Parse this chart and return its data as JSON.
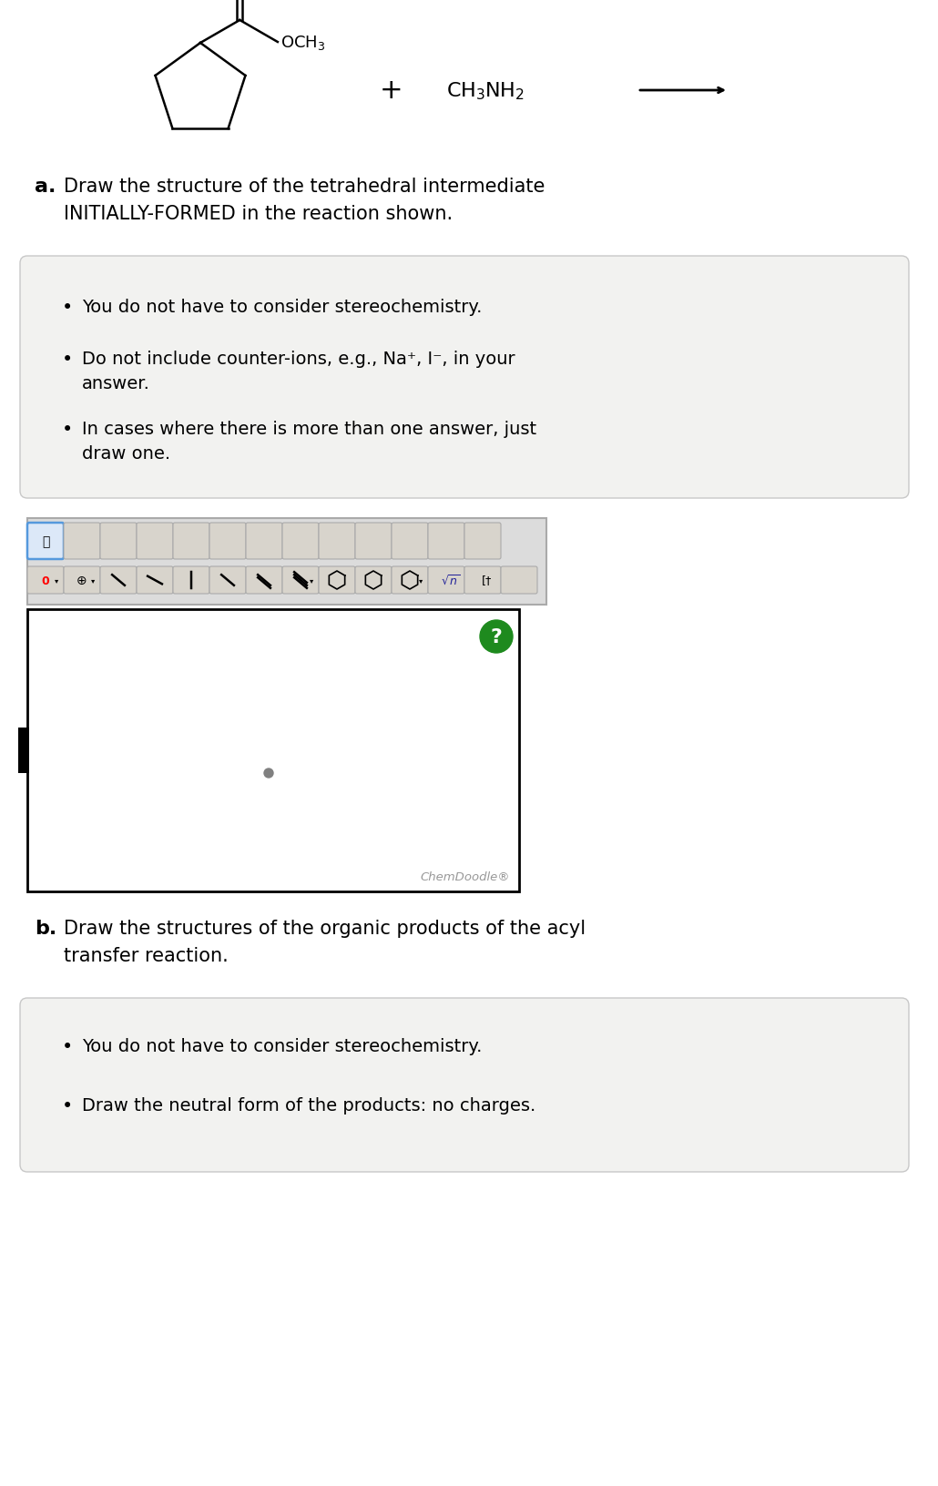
{
  "bg_color": "#ffffff",
  "fig_width": 10.3,
  "fig_height": 16.33,
  "dpi": 100,
  "text_a_bold": "a.",
  "text_a_normal": "Draw the structure of the tetrahedral intermediate\nINITIALLY-FORMED in the reaction shown.",
  "bullet_box_a": [
    "You do not have to consider stereochemistry.",
    "Do not include counter-ions, e.g., Na⁺, I⁻, in your\nanswer.",
    "In cases where there is more than one answer, just\ndraw one."
  ],
  "text_b_bold": "b.",
  "text_b_normal": "Draw the structures of the organic products of the acyl\ntransfer reaction.",
  "bullet_box_b": [
    "You do not have to consider stereochemistry.",
    "Draw the neutral form of the products: no charges."
  ],
  "chemdoodle_label": "ChemDoodle®",
  "box_fill": "#f2f2f0",
  "box_border": "#c8c8c8",
  "canvas_fill": "#ffffff",
  "canvas_border": "#000000",
  "question_mark_color": "#1e8a1e",
  "question_mark_text_color": "#ffffff",
  "dot_color": "#808080",
  "toolbar_bg": "#e0e0e0",
  "icon_bg": "#d8d4cc",
  "icon_border": "#aaaaaa",
  "icon_selected_bg": "#dce8f8",
  "icon_selected_border": "#5599dd"
}
